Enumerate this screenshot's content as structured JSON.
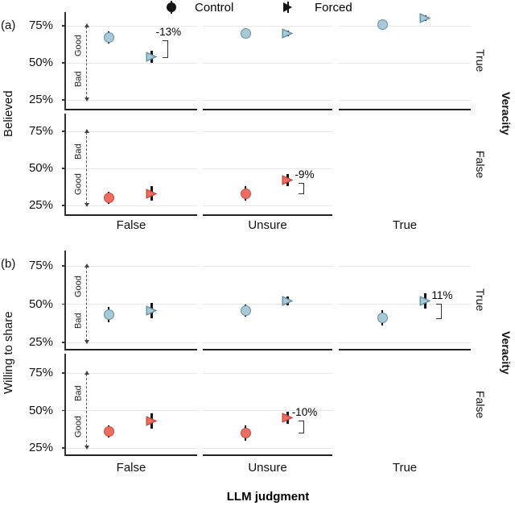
{
  "legend": {
    "items": [
      {
        "label": "Control",
        "marker": "circle"
      },
      {
        "label": "Forced",
        "marker": "triangle-right"
      }
    ]
  },
  "xlabel": "LLM judgment",
  "facet_outer_label": "Veracity",
  "colors": {
    "blue_fill": "#a8cad7",
    "blue_stroke": "#628fa3",
    "red_fill": "#ee6d62",
    "red_stroke": "#c74a3f",
    "errorbar": "#141414",
    "gridline": "#e7e7e7",
    "axis": "#222222",
    "arrow": "#555555"
  },
  "chart_data": [
    {
      "id": "a",
      "panel_label": "(a)",
      "type": "scatter",
      "ylabel": "Believed",
      "x_categories": [
        "False",
        "Unsure",
        "True"
      ],
      "y_tick_labels": [
        "75%",
        "50%",
        "25%"
      ],
      "y_gridlines": [
        75,
        50,
        25
      ],
      "ylim": [
        20,
        87
      ],
      "facet_rows": [
        {
          "label": "True",
          "direction_top": "Good",
          "direction_bottom": "Bad",
          "point_fill": "#a8cad7",
          "point_stroke": "#628fa3",
          "series": [
            {
              "name": "Control",
              "points": [
                {
                  "x": "False",
                  "y": 67,
                  "err": 4
                },
                {
                  "x": "Unsure",
                  "y": 70,
                  "err": 3
                },
                {
                  "x": "True",
                  "y": 76,
                  "err": 3
                }
              ]
            },
            {
              "name": "Forced",
              "points": [
                {
                  "x": "False",
                  "y": 54,
                  "err": 4
                },
                {
                  "x": "Unsure",
                  "y": 70,
                  "err": 2
                },
                {
                  "x": "True",
                  "y": 80,
                  "err": 2
                }
              ]
            }
          ],
          "annotations": [
            {
              "text": "-13%",
              "x": "False"
            }
          ]
        },
        {
          "label": "False",
          "direction_top": "Bad",
          "direction_bottom": "Good",
          "point_fill": "#ee6d62",
          "point_stroke": "#c74a3f",
          "series": [
            {
              "name": "Control",
              "points": [
                {
                  "x": "False",
                  "y": 30,
                  "err": 4
                },
                {
                  "x": "Unsure",
                  "y": 33,
                  "err": 5
                }
              ]
            },
            {
              "name": "Forced",
              "points": [
                {
                  "x": "False",
                  "y": 33,
                  "err": 5
                },
                {
                  "x": "Unsure",
                  "y": 42,
                  "err": 4
                }
              ]
            }
          ],
          "annotations": [
            {
              "text": "-9%",
              "x": "Unsure"
            }
          ]
        }
      ]
    },
    {
      "id": "b",
      "panel_label": "(b)",
      "type": "scatter",
      "ylabel": "Willing to share",
      "x_categories": [
        "False",
        "Unsure",
        "True"
      ],
      "y_tick_labels": [
        "75%",
        "50%",
        "25%"
      ],
      "y_gridlines": [
        75,
        50,
        25
      ],
      "ylim": [
        20,
        87
      ],
      "facet_rows": [
        {
          "label": "True",
          "direction_top": "Good",
          "direction_bottom": "Bad",
          "point_fill": "#a8cad7",
          "point_stroke": "#628fa3",
          "series": [
            {
              "name": "Control",
              "points": [
                {
                  "x": "False",
                  "y": 43,
                  "err": 5
                },
                {
                  "x": "Unsure",
                  "y": 46,
                  "err": 4
                },
                {
                  "x": "True",
                  "y": 41,
                  "err": 5
                }
              ]
            },
            {
              "name": "Forced",
              "points": [
                {
                  "x": "False",
                  "y": 46,
                  "err": 5
                },
                {
                  "x": "Unsure",
                  "y": 52,
                  "err": 3
                },
                {
                  "x": "True",
                  "y": 52,
                  "err": 5
                }
              ]
            }
          ],
          "annotations": [
            {
              "text": "11%",
              "x": "True"
            }
          ]
        },
        {
          "label": "False",
          "direction_top": "Bad",
          "direction_bottom": "Good",
          "point_fill": "#ee6d62",
          "point_stroke": "#c74a3f",
          "series": [
            {
              "name": "Control",
              "points": [
                {
                  "x": "False",
                  "y": 36,
                  "err": 4
                },
                {
                  "x": "Unsure",
                  "y": 35,
                  "err": 5
                }
              ]
            },
            {
              "name": "Forced",
              "points": [
                {
                  "x": "False",
                  "y": 43,
                  "err": 5
                },
                {
                  "x": "Unsure",
                  "y": 45,
                  "err": 4
                }
              ]
            }
          ],
          "annotations": [
            {
              "text": "-10%",
              "x": "Unsure"
            }
          ]
        }
      ]
    }
  ]
}
